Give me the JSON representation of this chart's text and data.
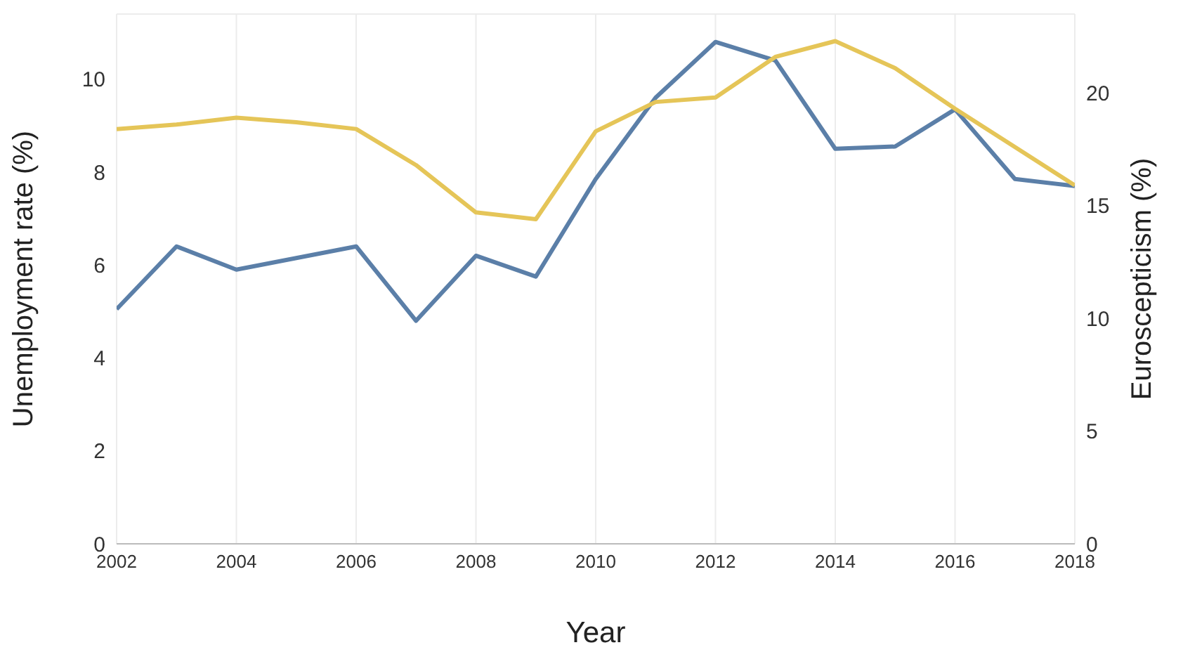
{
  "chart_data": {
    "type": "line",
    "xlabel": "Year",
    "ylabel": "Unemployment rate  (%)",
    "y2label": "Euroscepticism (%)",
    "x": [
      2002,
      2003,
      2004,
      2005,
      2006,
      2007,
      2008,
      2009,
      2010,
      2011,
      2012,
      2013,
      2014,
      2015,
      2016,
      2017,
      2018
    ],
    "series": [
      {
        "color": "#5b7fa8",
        "values": [
          5.05,
          6.4,
          5.9,
          6.15,
          6.4,
          4.8,
          6.2,
          5.75,
          7.85,
          9.6,
          10.8,
          10.4,
          8.5,
          8.55,
          9.35,
          7.85,
          7.7
        ]
      },
      {
        "color": "#e5c558",
        "axis": "y2",
        "values": [
          18.4,
          18.6,
          18.9,
          18.7,
          18.4,
          16.8,
          14.7,
          14.4,
          18.3,
          19.6,
          19.8,
          21.6,
          22.3,
          21.1,
          19.3,
          17.6,
          15.9
        ]
      }
    ],
    "xlim": [
      2002,
      2018
    ],
    "xticks": [
      2002,
      2004,
      2006,
      2008,
      2010,
      2012,
      2014,
      2016,
      2018
    ],
    "ylim": [
      0,
      11.4
    ],
    "yticks": [
      0,
      2,
      4,
      6,
      8,
      10
    ],
    "y2lim": [
      0,
      23.5
    ],
    "y2ticks": [
      0,
      5,
      10,
      15,
      20
    ],
    "grid": true,
    "legend": false,
    "marker": "none",
    "line_style": "solid"
  }
}
